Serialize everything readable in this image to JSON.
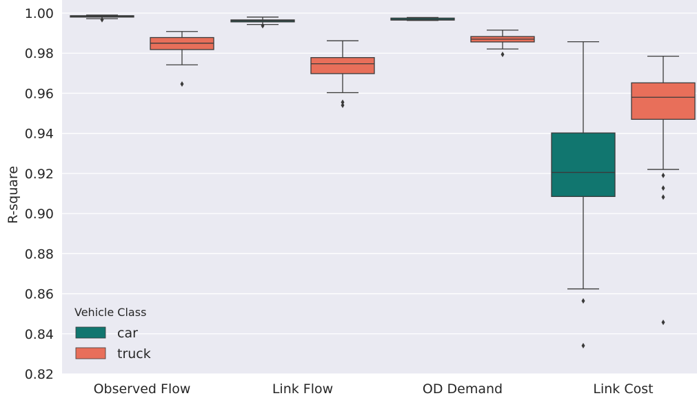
{
  "chart_data": {
    "type": "box",
    "ylabel": "R-square",
    "ylim": [
      0.82,
      1.0
    ],
    "yticks": [
      "0.82",
      "0.84",
      "0.86",
      "0.88",
      "0.90",
      "0.92",
      "0.94",
      "0.96",
      "0.98",
      "1.00"
    ],
    "yticks_values": [
      0.82,
      0.84,
      0.86,
      0.88,
      0.9,
      0.92,
      0.94,
      0.96,
      0.98,
      1.0
    ],
    "grid": true,
    "categories": [
      "Observed Flow",
      "Link Flow",
      "OD Demand",
      "Link Cost"
    ],
    "legend": {
      "title": "Vehicle Class",
      "placement": "lower-left"
    },
    "series": [
      {
        "name": "car",
        "color": "#11766f",
        "boxes": [
          {
            "whisker_low": 0.9972,
            "q1": 0.998,
            "median": 0.9983,
            "q3": 0.9987,
            "whisker_high": 0.999,
            "outliers": [
              0.9967
            ]
          },
          {
            "whisker_low": 0.9943,
            "q1": 0.9956,
            "median": 0.9962,
            "q3": 0.9966,
            "whisker_high": 0.998,
            "outliers": [
              0.9937
            ]
          },
          {
            "whisker_low": 0.9963,
            "q1": 0.9965,
            "median": 0.9968,
            "q3": 0.9975,
            "whisker_high": 0.9978,
            "outliers": []
          },
          {
            "whisker_low": 0.8624,
            "q1": 0.9085,
            "median": 0.9205,
            "q3": 0.9402,
            "whisker_high": 0.9857,
            "outliers": [
              0.8564,
              0.8341
            ]
          }
        ]
      },
      {
        "name": "truck",
        "color": "#e86f5a",
        "boxes": [
          {
            "whisker_low": 0.9742,
            "q1": 0.9818,
            "median": 0.985,
            "q3": 0.9878,
            "whisker_high": 0.9908,
            "outliers": [
              0.9646
            ]
          },
          {
            "whisker_low": 0.9603,
            "q1": 0.9698,
            "median": 0.9747,
            "q3": 0.9778,
            "whisker_high": 0.9862,
            "outliers": [
              0.9555,
              0.954
            ]
          },
          {
            "whisker_low": 0.9821,
            "q1": 0.9856,
            "median": 0.987,
            "q3": 0.9883,
            "whisker_high": 0.9915,
            "outliers": [
              0.9794
            ]
          },
          {
            "whisker_low": 0.922,
            "q1": 0.947,
            "median": 0.958,
            "q3": 0.9652,
            "whisker_high": 0.9785,
            "outliers": [
              0.919,
              0.9127,
              0.9082,
              0.8457
            ]
          }
        ]
      }
    ]
  }
}
